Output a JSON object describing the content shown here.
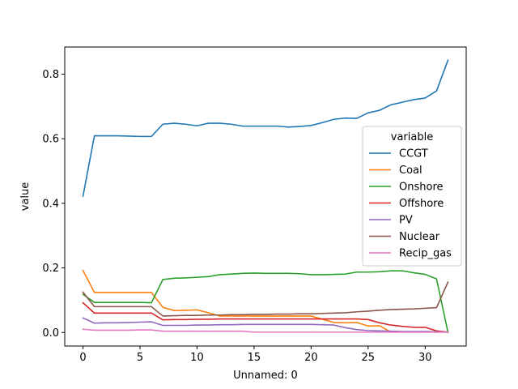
{
  "chart_data": {
    "type": "line",
    "xlabel": "Unnamed: 0",
    "ylabel": "value",
    "xlim": [
      -1.6,
      33.6
    ],
    "ylim": [
      -0.042,
      0.884
    ],
    "xticks": [
      0,
      5,
      10,
      15,
      20,
      25,
      30
    ],
    "yticks": [
      0.0,
      0.2,
      0.4,
      0.6,
      0.8
    ],
    "legend": {
      "title": "variable",
      "placement": "center-right"
    },
    "grid": false,
    "x": [
      0,
      1,
      2,
      3,
      4,
      5,
      6,
      7,
      8,
      9,
      10,
      11,
      12,
      13,
      14,
      15,
      16,
      17,
      18,
      19,
      20,
      21,
      22,
      23,
      24,
      25,
      26,
      27,
      28,
      29,
      30,
      31,
      32
    ],
    "series": [
      {
        "name": "CCGT",
        "color": "#1f77b4",
        "values": [
          0.422,
          0.609,
          0.609,
          0.609,
          0.608,
          0.607,
          0.607,
          0.645,
          0.648,
          0.645,
          0.64,
          0.648,
          0.648,
          0.645,
          0.639,
          0.639,
          0.639,
          0.639,
          0.636,
          0.638,
          0.641,
          0.65,
          0.66,
          0.664,
          0.663,
          0.68,
          0.688,
          0.705,
          0.713,
          0.721,
          0.726,
          0.748,
          0.843
        ]
      },
      {
        "name": "Coal",
        "color": "#ff7f0e",
        "values": [
          0.192,
          0.124,
          0.124,
          0.124,
          0.124,
          0.124,
          0.124,
          0.078,
          0.068,
          0.069,
          0.07,
          0.061,
          0.051,
          0.051,
          0.051,
          0.051,
          0.051,
          0.051,
          0.051,
          0.051,
          0.051,
          0.041,
          0.031,
          0.03,
          0.031,
          0.02,
          0.021,
          0.001,
          0.001,
          0.001,
          0.001,
          0.001,
          0.001
        ]
      },
      {
        "name": "Onshore",
        "color": "#2ca02c",
        "values": [
          0.118,
          0.093,
          0.093,
          0.093,
          0.093,
          0.093,
          0.092,
          0.164,
          0.168,
          0.169,
          0.171,
          0.173,
          0.179,
          0.181,
          0.183,
          0.184,
          0.183,
          0.183,
          0.183,
          0.182,
          0.179,
          0.179,
          0.18,
          0.181,
          0.187,
          0.187,
          0.188,
          0.191,
          0.191,
          0.185,
          0.18,
          0.166,
          0.001
        ]
      },
      {
        "name": "Offshore",
        "color": "#d62728",
        "values": [
          0.092,
          0.06,
          0.06,
          0.06,
          0.06,
          0.06,
          0.06,
          0.039,
          0.04,
          0.04,
          0.041,
          0.041,
          0.042,
          0.042,
          0.042,
          0.042,
          0.042,
          0.042,
          0.042,
          0.042,
          0.042,
          0.042,
          0.042,
          0.042,
          0.042,
          0.04,
          0.03,
          0.023,
          0.019,
          0.016,
          0.016,
          0.005,
          0.001
        ]
      },
      {
        "name": "PV",
        "color": "#9467bd",
        "values": [
          0.045,
          0.029,
          0.03,
          0.03,
          0.031,
          0.032,
          0.033,
          0.022,
          0.022,
          0.022,
          0.023,
          0.023,
          0.024,
          0.024,
          0.025,
          0.025,
          0.025,
          0.025,
          0.025,
          0.025,
          0.025,
          0.024,
          0.023,
          0.015,
          0.009,
          0.006,
          0.005,
          0.004,
          0.003,
          0.003,
          0.003,
          0.002,
          0.001
        ]
      },
      {
        "name": "Nuclear",
        "color": "#8c564b",
        "values": [
          0.125,
          0.08,
          0.08,
          0.08,
          0.08,
          0.08,
          0.08,
          0.051,
          0.052,
          0.053,
          0.053,
          0.054,
          0.054,
          0.055,
          0.055,
          0.056,
          0.056,
          0.057,
          0.057,
          0.058,
          0.058,
          0.059,
          0.06,
          0.061,
          0.064,
          0.066,
          0.069,
          0.071,
          0.072,
          0.073,
          0.075,
          0.077,
          0.156
        ]
      },
      {
        "name": "Recip_gas",
        "color": "#e377c2",
        "values": [
          0.01,
          0.007,
          0.007,
          0.007,
          0.007,
          0.008,
          0.008,
          0.004,
          0.004,
          0.004,
          0.004,
          0.004,
          0.004,
          0.004,
          0.004,
          0.001,
          0.001,
          0.001,
          0.001,
          0.001,
          0.001,
          0.001,
          0.001,
          0.001,
          0.001,
          0.001,
          0.001,
          0.001,
          0.001,
          0.001,
          0.001,
          0.001,
          0.001
        ]
      }
    ]
  }
}
